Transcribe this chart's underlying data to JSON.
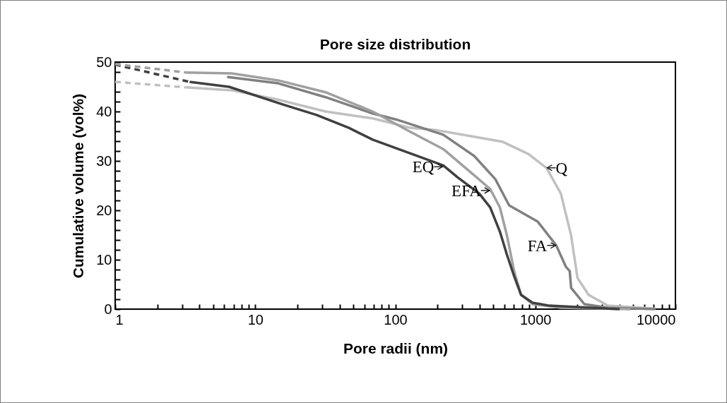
{
  "chart_data": {
    "type": "line",
    "title": "Pore size distribution",
    "xlabel": "Pore radii (nm)",
    "ylabel": "Cumulative volume (vol%)",
    "log": "x",
    "grid": false,
    "marker": "none",
    "xlim": [
      1,
      10000
    ],
    "ylim": [
      0,
      50
    ],
    "xticks": [
      1,
      {
        "value": 2,
        "label": null
      },
      {
        "value": 3,
        "label": null
      },
      {
        "value": 4,
        "label": null
      },
      {
        "value": 5,
        "label": null
      },
      {
        "value": 6,
        "label": null
      },
      {
        "value": 7,
        "label": null
      },
      {
        "value": 8,
        "label": null
      },
      {
        "value": 9,
        "label": null
      },
      10,
      {
        "value": 20,
        "label": null
      },
      {
        "value": 30,
        "label": null
      },
      {
        "value": 40,
        "label": null
      },
      {
        "value": 50,
        "label": null
      },
      {
        "value": 60,
        "label": null
      },
      {
        "value": 70,
        "label": null
      },
      {
        "value": 80,
        "label": null
      },
      {
        "value": 90,
        "label": null
      },
      100,
      {
        "value": 200,
        "label": null
      },
      {
        "value": 300,
        "label": null
      },
      {
        "value": 400,
        "label": null
      },
      {
        "value": 500,
        "label": null
      },
      {
        "value": 600,
        "label": null
      },
      {
        "value": 700,
        "label": null
      },
      {
        "value": 800,
        "label": null
      },
      {
        "value": 900,
        "label": null
      },
      1000,
      {
        "value": 2000,
        "label": null
      },
      {
        "value": 3000,
        "label": null
      },
      {
        "value": 4000,
        "label": null
      },
      {
        "value": 5000,
        "label": null
      },
      {
        "value": 6000,
        "label": null
      },
      {
        "value": 7000,
        "label": null
      },
      {
        "value": 8000,
        "label": null
      },
      {
        "value": 9000,
        "label": null
      },
      10000
    ],
    "yticks": [
      0,
      {
        "value": 2,
        "label": null
      },
      {
        "value": 4,
        "label": null
      },
      {
        "value": 6,
        "label": null
      },
      {
        "value": 8,
        "label": null
      },
      10,
      {
        "value": 12,
        "label": null
      },
      {
        "value": 14,
        "label": null
      },
      {
        "value": 16,
        "label": null
      },
      {
        "value": 18,
        "label": null
      },
      20,
      {
        "value": 22,
        "label": null
      },
      {
        "value": 24,
        "label": null
      },
      {
        "value": 26,
        "label": null
      },
      {
        "value": 28,
        "label": null
      },
      30,
      {
        "value": 32,
        "label": null
      },
      {
        "value": 34,
        "label": null
      },
      {
        "value": 36,
        "label": null
      },
      {
        "value": 38,
        "label": null
      },
      40,
      {
        "value": 42,
        "label": null
      },
      {
        "value": 44,
        "label": null
      },
      {
        "value": 46,
        "label": null
      },
      {
        "value": 48,
        "label": null
      },
      50
    ],
    "series": [
      {
        "color": "#c0c0c0",
        "line_style": "dashed",
        "x": [
          1,
          3.2
        ],
        "values": [
          46,
          44.9
        ]
      },
      {
        "color": "#404040",
        "line_style": "dashed",
        "x": [
          1,
          3.4
        ],
        "values": [
          49.5,
          46
        ]
      },
      {
        "color": "#a0a0a0",
        "line_style": "dashed",
        "x": [
          1,
          3.2
        ],
        "values": [
          49.6,
          47.9
        ]
      },
      {
        "name": "Q",
        "color": "#c0c0c0",
        "line_style": "solid",
        "x": [
          3.2,
          6.8,
          14.6,
          31.8,
          69,
          128,
          200,
          366,
          580,
          890,
          1200,
          1520,
          1800,
          2000,
          2400,
          3300,
          7200
        ],
        "values": [
          44.9,
          44.3,
          42.4,
          40,
          38.6,
          36.7,
          36.2,
          34.9,
          33.9,
          31.4,
          28.6,
          23.4,
          14.9,
          6.3,
          2.9,
          0.7,
          0.1
        ]
      },
      {
        "name": "FA",
        "color": "#808080",
        "line_style": "solid",
        "x": [
          6.3,
          14.6,
          31.8,
          69,
          101,
          220,
          366,
          518,
          650,
          1040,
          1410,
          1650,
          1760,
          1800,
          2240,
          3300,
          7200
        ],
        "values": [
          47,
          45.7,
          42.9,
          39.6,
          38.4,
          35.3,
          31,
          26.3,
          21,
          17.7,
          12.9,
          8.6,
          7.7,
          4.3,
          1,
          0.3,
          0
        ]
      },
      {
        "name": "EFA",
        "color": "#a0a0a0",
        "line_style": "solid",
        "x": [
          3.2,
          6.8,
          14.6,
          31.8,
          69,
          128,
          220,
          366,
          476,
          558,
          627,
          705,
          790,
          955,
          1520,
          4800
        ],
        "values": [
          47.9,
          47.7,
          46.3,
          43.9,
          40,
          35.9,
          32.4,
          27.1,
          24.3,
          20.6,
          14.9,
          7.7,
          2.9,
          1,
          0.3,
          0
        ]
      },
      {
        "name": "EQ",
        "color": "#404040",
        "line_style": "solid",
        "x": [
          3.4,
          6.5,
          15.8,
          27.4,
          46.6,
          69,
          101,
          220,
          278,
          397,
          476,
          558,
          627,
          705,
          790,
          955,
          1260,
          3300,
          4000
        ],
        "values": [
          46,
          45,
          41.4,
          39.3,
          36.7,
          34.3,
          32.6,
          29.1,
          26.7,
          23.4,
          20.6,
          15.7,
          11,
          6.7,
          2.9,
          1.3,
          0.7,
          0.1,
          0
        ]
      }
    ]
  }
}
